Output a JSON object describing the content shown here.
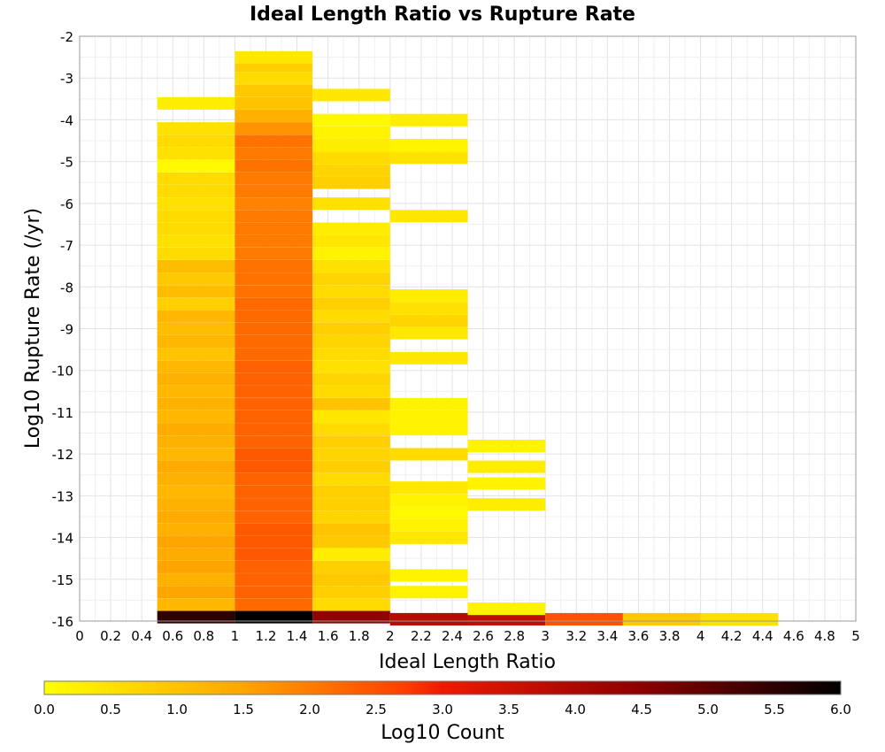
{
  "chart_data": {
    "type": "heatmap",
    "title": "Ideal Length Ratio vs Rupture Rate",
    "xlabel": "Ideal Length Ratio",
    "ylabel": "Log10 Rupture Rate (/yr)",
    "colorbar_label": "Log10 Count",
    "xlim": [
      0,
      5
    ],
    "ylim": [
      -16,
      -2
    ],
    "x_ticks": [
      0,
      0.2,
      0.4,
      0.6,
      0.8,
      1,
      1.2,
      1.4,
      1.6,
      1.8,
      2,
      2.2,
      2.4,
      2.6,
      2.8,
      3,
      3.2,
      3.4,
      3.6,
      3.8,
      4,
      4.2,
      4.4,
      4.6,
      4.8,
      5
    ],
    "y_ticks": [
      -2,
      -3,
      -4,
      -5,
      -6,
      -7,
      -8,
      -9,
      -10,
      -11,
      -12,
      -13,
      -14,
      -15,
      -16
    ],
    "colorbar_ticks": [
      "0.0",
      "0.5",
      "1.0",
      "1.5",
      "2.0",
      "2.5",
      "3.0",
      "3.5",
      "4.0",
      "4.5",
      "5.0",
      "5.5",
      "6.0"
    ],
    "color_range": [
      0,
      6
    ],
    "colormap": [
      "#ffff00",
      "#ffa500",
      "#ff4000",
      "#8b0000",
      "#000000"
    ],
    "grid": true,
    "x_bin_width": 0.5,
    "y_bin_height": 0.285,
    "columns": [
      {
        "x_start": 0.5,
        "cells": [
          {
            "y": -15.9,
            "v": 5.5
          },
          {
            "y": -15.6,
            "v": 1.2
          },
          {
            "y": -15.3,
            "v": 1.5
          },
          {
            "y": -15.0,
            "v": 1.3
          },
          {
            "y": -14.7,
            "v": 1.5
          },
          {
            "y": -14.4,
            "v": 1.4
          },
          {
            "y": -14.1,
            "v": 1.5
          },
          {
            "y": -13.8,
            "v": 1.3
          },
          {
            "y": -13.5,
            "v": 1.4
          },
          {
            "y": -13.2,
            "v": 1.3
          },
          {
            "y": -12.9,
            "v": 1.2
          },
          {
            "y": -12.6,
            "v": 1.3
          },
          {
            "y": -12.3,
            "v": 1.4
          },
          {
            "y": -12.0,
            "v": 1.2
          },
          {
            "y": -11.7,
            "v": 1.3
          },
          {
            "y": -11.4,
            "v": 1.4
          },
          {
            "y": -11.1,
            "v": 1.2
          },
          {
            "y": -10.8,
            "v": 1.3
          },
          {
            "y": -10.5,
            "v": 1.2
          },
          {
            "y": -10.2,
            "v": 1.3
          },
          {
            "y": -9.9,
            "v": 1.2
          },
          {
            "y": -9.6,
            "v": 1.0
          },
          {
            "y": -9.3,
            "v": 1.2
          },
          {
            "y": -9.0,
            "v": 1.1
          },
          {
            "y": -8.7,
            "v": 1.2
          },
          {
            "y": -8.4,
            "v": 0.8
          },
          {
            "y": -8.1,
            "v": 1.1
          },
          {
            "y": -7.8,
            "v": 0.9
          },
          {
            "y": -7.5,
            "v": 1.1
          },
          {
            "y": -7.2,
            "v": 0.6
          },
          {
            "y": -6.9,
            "v": 0.5
          },
          {
            "y": -6.6,
            "v": 0.6
          },
          {
            "y": -6.3,
            "v": 0.6
          },
          {
            "y": -6.0,
            "v": 0.5
          },
          {
            "y": -5.7,
            "v": 0.6
          },
          {
            "y": -5.4,
            "v": 0.6
          },
          {
            "y": -5.1,
            "v": 0.1
          },
          {
            "y": -4.8,
            "v": 0.5
          },
          {
            "y": -4.5,
            "v": 0.6
          },
          {
            "y": -4.2,
            "v": 0.5
          },
          {
            "y": -3.6,
            "v": 0.3
          }
        ]
      },
      {
        "x_start": 1.0,
        "cells": [
          {
            "y": -15.9,
            "v": 6.0
          },
          {
            "y": -15.6,
            "v": 2.2
          },
          {
            "y": -15.3,
            "v": 2.3
          },
          {
            "y": -15.0,
            "v": 2.3
          },
          {
            "y": -14.7,
            "v": 2.3
          },
          {
            "y": -14.4,
            "v": 2.4
          },
          {
            "y": -14.1,
            "v": 2.4
          },
          {
            "y": -13.8,
            "v": 2.4
          },
          {
            "y": -13.5,
            "v": 2.3
          },
          {
            "y": -13.2,
            "v": 2.3
          },
          {
            "y": -12.9,
            "v": 2.3
          },
          {
            "y": -12.6,
            "v": 2.3
          },
          {
            "y": -12.3,
            "v": 2.4
          },
          {
            "y": -12.0,
            "v": 2.4
          },
          {
            "y": -11.7,
            "v": 2.3
          },
          {
            "y": -11.4,
            "v": 2.3
          },
          {
            "y": -11.1,
            "v": 2.3
          },
          {
            "y": -10.8,
            "v": 2.3
          },
          {
            "y": -10.5,
            "v": 2.3
          },
          {
            "y": -10.2,
            "v": 2.3
          },
          {
            "y": -9.9,
            "v": 2.3
          },
          {
            "y": -9.6,
            "v": 2.2
          },
          {
            "y": -9.3,
            "v": 2.2
          },
          {
            "y": -9.0,
            "v": 2.2
          },
          {
            "y": -8.7,
            "v": 2.2
          },
          {
            "y": -8.4,
            "v": 2.2
          },
          {
            "y": -8.1,
            "v": 2.1
          },
          {
            "y": -7.8,
            "v": 2.1
          },
          {
            "y": -7.5,
            "v": 2.1
          },
          {
            "y": -7.2,
            "v": 2.0
          },
          {
            "y": -6.9,
            "v": 2.0
          },
          {
            "y": -6.6,
            "v": 2.0
          },
          {
            "y": -6.3,
            "v": 2.0
          },
          {
            "y": -6.0,
            "v": 1.9
          },
          {
            "y": -5.7,
            "v": 2.0
          },
          {
            "y": -5.4,
            "v": 2.0
          },
          {
            "y": -5.1,
            "v": 2.1
          },
          {
            "y": -4.8,
            "v": 2.0
          },
          {
            "y": -4.5,
            "v": 2.1
          },
          {
            "y": -4.2,
            "v": 1.7
          },
          {
            "y": -3.9,
            "v": 1.3
          },
          {
            "y": -3.6,
            "v": 1.0
          },
          {
            "y": -3.3,
            "v": 0.9
          },
          {
            "y": -3.0,
            "v": 0.6
          },
          {
            "y": -2.7,
            "v": 0.8
          },
          {
            "y": -2.5,
            "v": 0.4
          }
        ]
      },
      {
        "x_start": 1.5,
        "cells": [
          {
            "y": -15.9,
            "v": 4.4
          },
          {
            "y": -15.6,
            "v": 0.6
          },
          {
            "y": -15.3,
            "v": 0.8
          },
          {
            "y": -15.0,
            "v": 0.9
          },
          {
            "y": -14.7,
            "v": 0.8
          },
          {
            "y": -14.4,
            "v": 0.3
          },
          {
            "y": -14.1,
            "v": 0.9
          },
          {
            "y": -13.8,
            "v": 1.0
          },
          {
            "y": -13.5,
            "v": 0.7
          },
          {
            "y": -13.2,
            "v": 0.8
          },
          {
            "y": -12.9,
            "v": 0.8
          },
          {
            "y": -12.6,
            "v": 0.6
          },
          {
            "y": -12.3,
            "v": 0.8
          },
          {
            "y": -12.0,
            "v": 0.7
          },
          {
            "y": -11.7,
            "v": 0.8
          },
          {
            "y": -11.4,
            "v": 0.6
          },
          {
            "y": -11.1,
            "v": 0.4
          },
          {
            "y": -10.8,
            "v": 1.0
          },
          {
            "y": -10.5,
            "v": 0.6
          },
          {
            "y": -10.2,
            "v": 0.7
          },
          {
            "y": -9.9,
            "v": 0.5
          },
          {
            "y": -9.6,
            "v": 0.6
          },
          {
            "y": -9.3,
            "v": 0.7
          },
          {
            "y": -9.0,
            "v": 0.8
          },
          {
            "y": -8.7,
            "v": 0.6
          },
          {
            "y": -8.4,
            "v": 0.8
          },
          {
            "y": -8.1,
            "v": 0.6
          },
          {
            "y": -7.8,
            "v": 0.7
          },
          {
            "y": -7.5,
            "v": 0.5
          },
          {
            "y": -7.2,
            "v": 0.2
          },
          {
            "y": -6.9,
            "v": 0.4
          },
          {
            "y": -6.6,
            "v": 0.3
          },
          {
            "y": -6.0,
            "v": 0.5
          },
          {
            "y": -5.5,
            "v": 0.8
          },
          {
            "y": -5.2,
            "v": 0.7
          },
          {
            "y": -4.9,
            "v": 0.6
          },
          {
            "y": -4.6,
            "v": 0.3
          },
          {
            "y": -4.3,
            "v": 0.2
          },
          {
            "y": -4.0,
            "v": 0.1
          },
          {
            "y": -3.4,
            "v": 0.4
          }
        ]
      },
      {
        "x_start": 2.0,
        "cells": [
          {
            "y": -15.95,
            "v": 3.8
          },
          {
            "y": -15.3,
            "v": 0.2
          },
          {
            "y": -14.9,
            "v": 0.2
          },
          {
            "y": -14.0,
            "v": 0.4
          },
          {
            "y": -13.7,
            "v": 0.2
          },
          {
            "y": -13.4,
            "v": 0.1
          },
          {
            "y": -13.1,
            "v": 0.2
          },
          {
            "y": -12.8,
            "v": 0.4
          },
          {
            "y": -12.0,
            "v": 0.6
          },
          {
            "y": -11.4,
            "v": 0.2
          },
          {
            "y": -11.1,
            "v": 0.2
          },
          {
            "y": -10.8,
            "v": 0.2
          },
          {
            "y": -9.7,
            "v": 0.4
          },
          {
            "y": -9.1,
            "v": 0.4
          },
          {
            "y": -8.8,
            "v": 0.7
          },
          {
            "y": -8.5,
            "v": 0.5
          },
          {
            "y": -8.2,
            "v": 0.3
          },
          {
            "y": -6.3,
            "v": 0.4
          },
          {
            "y": -4.9,
            "v": 0.5
          },
          {
            "y": -4.6,
            "v": 0.2
          },
          {
            "y": -4.0,
            "v": 0.3
          }
        ]
      },
      {
        "x_start": 2.5,
        "cells": [
          {
            "y": -15.95,
            "v": 3.7
          },
          {
            "y": -15.7,
            "v": 0.2
          },
          {
            "y": -13.2,
            "v": 0.3
          },
          {
            "y": -12.7,
            "v": 0.2
          },
          {
            "y": -12.3,
            "v": 0.3
          },
          {
            "y": -11.8,
            "v": 0.2
          }
        ]
      },
      {
        "x_start": 3.0,
        "cells": [
          {
            "y": -15.95,
            "v": 2.5
          }
        ]
      },
      {
        "x_start": 3.5,
        "cells": [
          {
            "y": -15.95,
            "v": 0.9
          }
        ]
      },
      {
        "x_start": 4.0,
        "cells": [
          {
            "y": -15.95,
            "v": 0.5
          }
        ]
      }
    ]
  }
}
